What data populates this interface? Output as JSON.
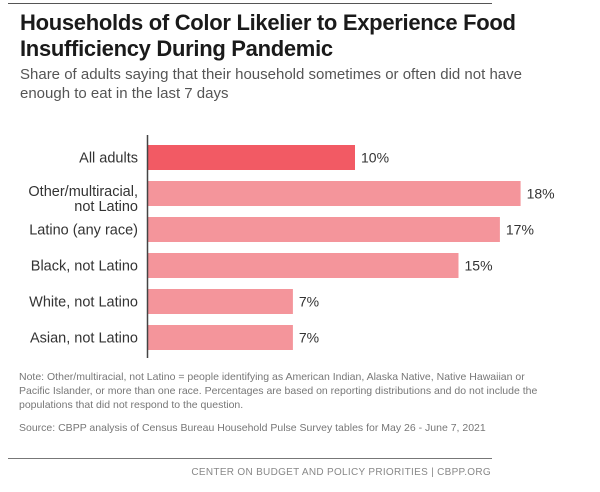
{
  "header": {
    "title": "Households of Color Likelier to Experience Food Insufficiency During Pandemic",
    "subtitle": "Share of adults saying that their household sometimes or often did not have enough to eat in the last 7 days"
  },
  "chart_data": {
    "type": "bar",
    "orientation": "horizontal",
    "title": "Households of Color Likelier to Experience Food Insufficiency During Pandemic",
    "subtitle": "Share of adults saying that their household sometimes or often did not have enough to eat in the last 7 days",
    "categories": [
      [
        "All adults"
      ],
      [
        "Other/multiracial,",
        "not Latino"
      ],
      [
        "Latino (any race)"
      ],
      [
        "Black, not Latino"
      ],
      [
        "White, not Latino"
      ],
      [
        "Asian, not Latino"
      ]
    ],
    "values": [
      10,
      18,
      17,
      15,
      7,
      7
    ],
    "data_labels": [
      "10%",
      "18%",
      "17%",
      "15%",
      "7%",
      "7%"
    ],
    "highlight_index": 0,
    "colors": {
      "highlight": "#f25a64",
      "default": "#f4959b",
      "axis": "#444444",
      "text": "#333333"
    },
    "xlabel": "",
    "ylabel": "",
    "xlim": [
      0,
      18
    ],
    "grid": false,
    "legend": "none"
  },
  "notes": {
    "note": "Note: Other/multiracial, not Latino = people identifying as American Indian, Alaska Native, Native Hawaiian or Pacific Islander, or more than one race. Percentages are based on reporting distributions and do not include the populations that did not respond to the question.",
    "source": "Source: CBPP analysis of Census Bureau Household Pulse Survey tables for May 26 - June 7, 2021"
  },
  "footer": {
    "credit": "CENTER ON BUDGET AND POLICY PRIORITIES | CBPP.ORG"
  }
}
